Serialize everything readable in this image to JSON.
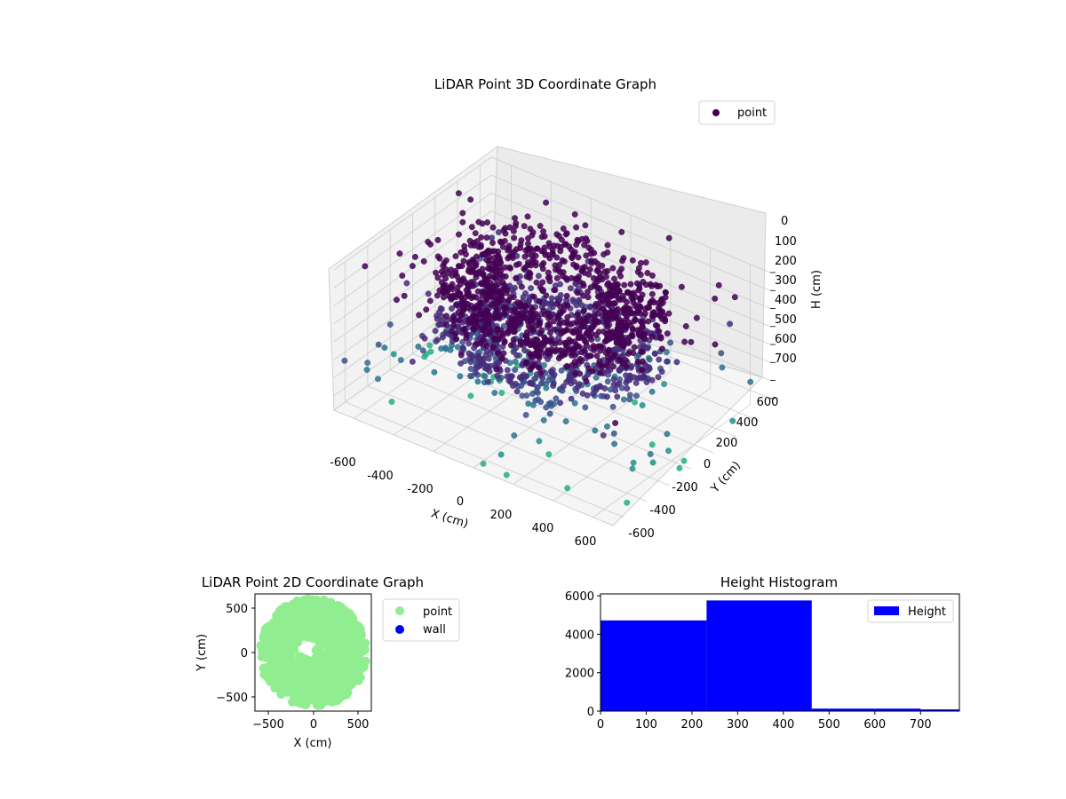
{
  "colors": {
    "dark_purple": "#440154",
    "mid_purple": "#472d7b",
    "indigo": "#3b528b",
    "teal": "#2c728e",
    "cyan": "#21918c",
    "green_teal": "#28ae80",
    "light_green": "#90ee90",
    "wall_blue": "#0000ff",
    "hist_blue": "#0000ff",
    "yellow_green": "#addc30"
  },
  "chart_data": [
    {
      "type": "scatter",
      "subtype": "3d-scatter",
      "title": "LiDAR Point 3D Coordinate Graph",
      "xlabel": "X (cm)",
      "ylabel": "Y (cm)",
      "zlabel": "H (cm)",
      "x_ticks": [
        "-600",
        "-400",
        "-200",
        "0",
        "200",
        "400",
        "600"
      ],
      "y_ticks": [
        "-600",
        "-400",
        "-200",
        "0",
        "200",
        "400",
        "600"
      ],
      "z_ticks": [
        "0",
        "100",
        "200",
        "300",
        "400",
        "500",
        "600",
        "700"
      ],
      "xlim": [
        -700,
        700
      ],
      "ylim": [
        -700,
        700
      ],
      "zlim": [
        0,
        780
      ],
      "z_inverted": true,
      "grid": true,
      "colormap": "viridis",
      "legend": {
        "placement": "top-right",
        "entries": [
          "point"
        ]
      },
      "series": [
        {
          "name": "point",
          "components": [
            {
              "kind": "ring",
              "radius_min": 250,
              "radius_max": 520,
              "h_min": 20,
              "h_max": 460
            },
            {
              "kind": "scatter-outliers",
              "x_range": [
                -700,
                700
              ],
              "y_range": [
                -700,
                700
              ],
              "h_range": [
                0,
                780
              ]
            }
          ]
        }
      ]
    },
    {
      "type": "scatter",
      "title": "LiDAR Point 2D Coordinate Graph",
      "xlabel": "X (cm)",
      "ylabel": "Y (cm)",
      "x_ticks": [
        "−500",
        "0",
        "500"
      ],
      "y_ticks": [
        "500",
        "0",
        "−500"
      ],
      "xlim": [
        -650,
        650
      ],
      "ylim": [
        -650,
        650
      ],
      "legend": {
        "placement": "outside-right",
        "entries": [
          "point",
          "wall"
        ]
      },
      "series": [
        {
          "name": "point",
          "color": "#90ee90",
          "coverage": "dense disc radius ~560 cm with notch near (-80, 50)"
        },
        {
          "name": "wall",
          "color": "#0000ff",
          "points": []
        }
      ]
    },
    {
      "type": "bar",
      "subtype": "histogram",
      "title": "Height Histogram",
      "x_ticks": [
        "0",
        "100",
        "200",
        "300",
        "400",
        "500",
        "600",
        "700"
      ],
      "y_ticks": [
        "0",
        "2000",
        "4000",
        "6000"
      ],
      "xlim": [
        0,
        785
      ],
      "ylim": [
        0,
        6100
      ],
      "legend": {
        "placement": "top-right",
        "entries": [
          "Height"
        ]
      },
      "series": [
        {
          "name": "Height",
          "color": "#0000ff",
          "bins": [
            {
              "from": 0,
              "to": 232,
              "count": 4720
            },
            {
              "from": 232,
              "to": 462,
              "count": 5760
            },
            {
              "from": 462,
              "to": 700,
              "count": 130
            },
            {
              "from": 700,
              "to": 785,
              "count": 90
            }
          ]
        }
      ]
    }
  ]
}
